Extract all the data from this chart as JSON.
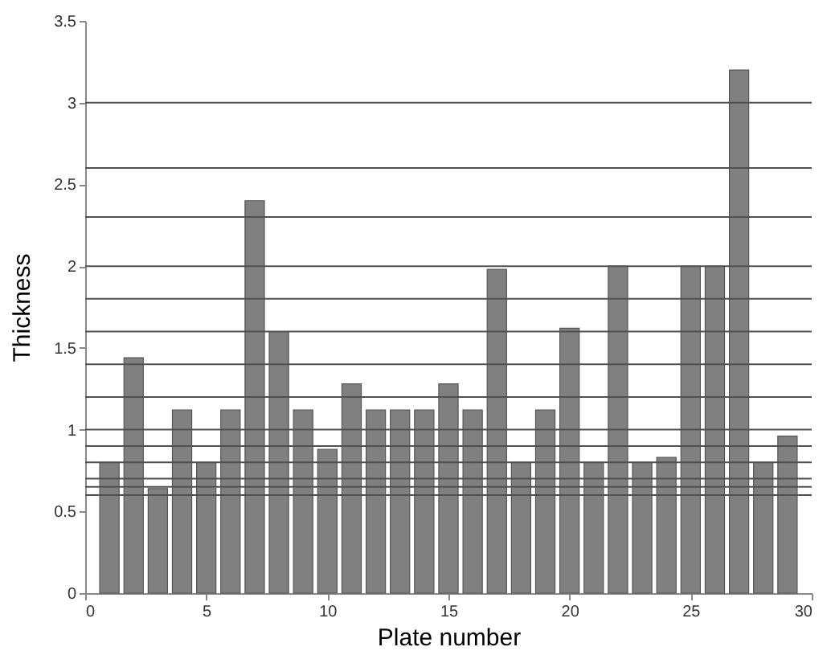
{
  "chart_data": {
    "type": "bar",
    "xlabel": "Plate number",
    "ylabel": "Thickness",
    "x": [
      1,
      2,
      3,
      4,
      5,
      6,
      7,
      8,
      9,
      10,
      11,
      12,
      13,
      14,
      15,
      16,
      17,
      18,
      19,
      20,
      21,
      22,
      23,
      24,
      25,
      26,
      27,
      28,
      29
    ],
    "series": [
      {
        "color": "#808080",
        "values": [
          0.8,
          1.44,
          0.64,
          1.12,
          0.8,
          1.12,
          2.4,
          1.6,
          1.12,
          0.88,
          1.28,
          1.12,
          1.12,
          1.12,
          1.28,
          1.12,
          1.98,
          0.8,
          1.12,
          1.62,
          0.8,
          2.0,
          0.8,
          0.83,
          2.0,
          2.0,
          3.2,
          0.8,
          0.96
        ]
      }
    ],
    "xlim": [
      0,
      30
    ],
    "xticks": [
      0,
      5,
      10,
      15,
      20,
      25,
      30
    ],
    "ylim": [
      0,
      3.5
    ],
    "yticks": [
      0,
      0.5,
      1,
      1.5,
      2,
      2.5,
      3,
      3.5
    ],
    "ref_lines": [
      {
        "axis": "y",
        "value": 3.0,
        "color": "#505050"
      },
      {
        "axis": "y",
        "value": 2.6,
        "color": "#505050"
      },
      {
        "axis": "y",
        "value": 2.3,
        "color": "#505050"
      },
      {
        "axis": "y",
        "value": 2.0,
        "color": "#505050"
      },
      {
        "axis": "y",
        "value": 1.8,
        "color": "#505050"
      },
      {
        "axis": "y",
        "value": 1.6,
        "color": "#505050"
      },
      {
        "axis": "y",
        "value": 1.4,
        "color": "#505050"
      },
      {
        "axis": "y",
        "value": 1.2,
        "color": "#505050"
      },
      {
        "axis": "y",
        "value": 1.0,
        "color": "#505050"
      },
      {
        "axis": "y",
        "value": 0.9,
        "color": "#505050"
      },
      {
        "axis": "y",
        "value": 0.8,
        "color": "#505050"
      },
      {
        "axis": "y",
        "value": 0.7,
        "color": "#505050"
      },
      {
        "axis": "y",
        "value": 0.65,
        "color": "#505050"
      },
      {
        "axis": "y",
        "value": 0.6,
        "color": "#505050"
      }
    ]
  }
}
